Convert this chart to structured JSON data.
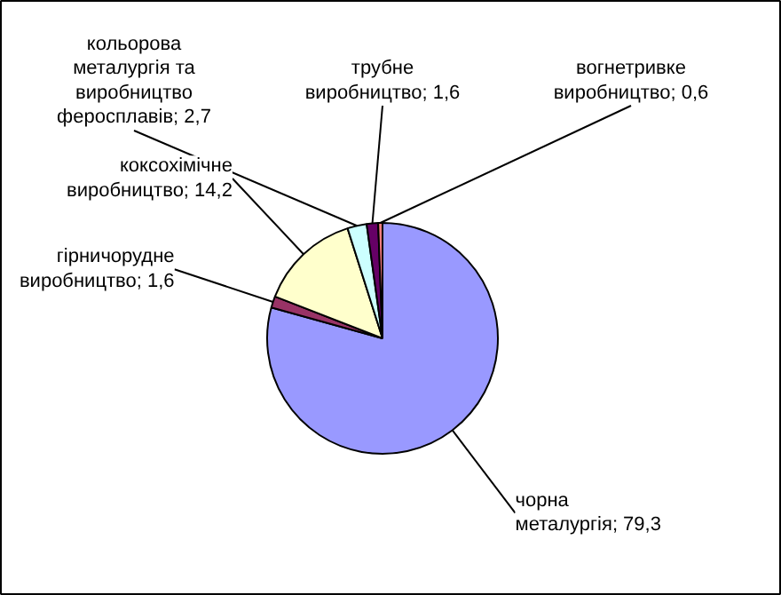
{
  "chart_data": {
    "type": "pie",
    "categories": [
      "чорна металургія",
      "гірничорудне виробництво",
      "коксохімічне виробництво",
      "кольорова металургія та виробництво феросплавів",
      "трубне виробництво",
      "вогнетривке виробництво"
    ],
    "values": [
      79.3,
      1.6,
      14.2,
      2.7,
      1.6,
      0.6
    ],
    "value_labels": [
      "79,3",
      "1,6",
      "14,2",
      "2,7",
      "1,6",
      "0,6"
    ],
    "colors": [
      "#9999ff",
      "#993366",
      "#ffffcc",
      "#ccffff",
      "#660066",
      "#ff8080"
    ]
  }
}
